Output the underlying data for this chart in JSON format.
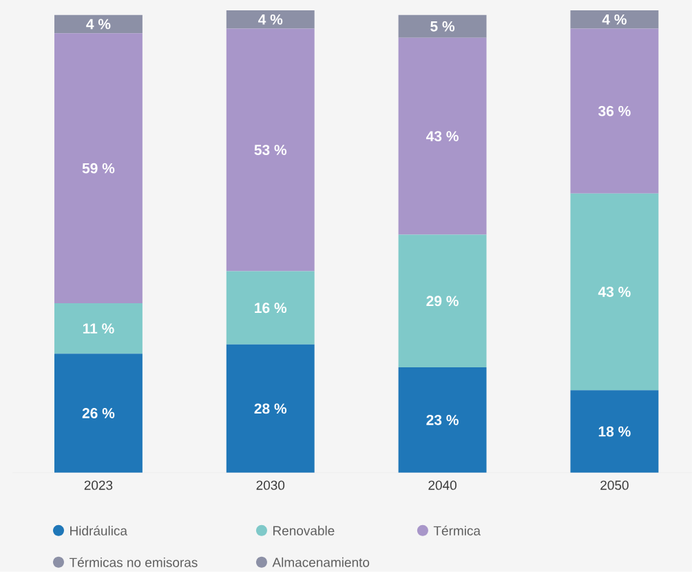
{
  "chart_data": {
    "type": "bar",
    "stacked": true,
    "categories": [
      "2023",
      "2030",
      "2040",
      "2050"
    ],
    "tick_labels": "x",
    "grid": false,
    "legend": "bottom",
    "series": [
      {
        "name": "Hidráulica",
        "color": "#1f77b8",
        "values": [
          26,
          28,
          23,
          18
        ],
        "value_labels": [
          "26 %",
          "28 %",
          "23 %",
          "18 %"
        ]
      },
      {
        "name": "Renovable",
        "color": "#7fc9c9",
        "values": [
          11,
          16,
          29,
          43
        ],
        "value_labels": [
          "11 %",
          "16 %",
          "29 %",
          "43 %"
        ]
      },
      {
        "name": "Térmica",
        "color": "#a896c9",
        "values": [
          59,
          53,
          43,
          36
        ],
        "value_labels": [
          "59 %",
          "53 %",
          "43 %",
          "36 %"
        ]
      },
      {
        "name": "Térmicas no emisoras",
        "color": "#8c90a6",
        "values": [
          4,
          4,
          5,
          4
        ],
        "value_labels": [
          "4 %",
          "4 %",
          "5 %",
          "4 %"
        ]
      },
      {
        "name": "Almacenamiento",
        "color": "#8c90a6",
        "values": [
          null,
          null,
          null,
          null
        ]
      }
    ]
  }
}
